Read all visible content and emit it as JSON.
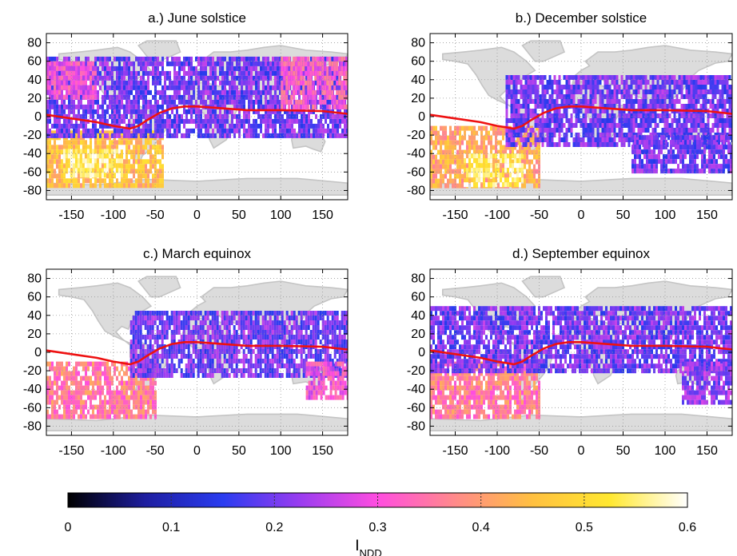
{
  "chart_data": [
    {
      "type": "heatmap",
      "title": "a.) June solstice",
      "xlim": [
        -180,
        180
      ],
      "ylim": [
        -90,
        90
      ],
      "xticks": [
        -150,
        -100,
        -50,
        0,
        50,
        100,
        150
      ],
      "yticks": [
        80,
        60,
        40,
        20,
        0,
        -20,
        -40,
        -60,
        -80
      ],
      "grid": true,
      "equator_line": [
        [
          -180,
          2
        ],
        [
          -150,
          -2
        ],
        [
          -120,
          -6
        ],
        [
          -100,
          -10
        ],
        [
          -80,
          -13
        ],
        [
          -70,
          -10
        ],
        [
          -60,
          -4
        ],
        [
          -45,
          4
        ],
        [
          -30,
          9
        ],
        [
          -15,
          11
        ],
        [
          0,
          11
        ],
        [
          30,
          9
        ],
        [
          60,
          7
        ],
        [
          100,
          7
        ],
        [
          150,
          6
        ],
        [
          180,
          3
        ]
      ],
      "regions": [
        {
          "lon": [
            -180,
            -40
          ],
          "lat": [
            -75,
            -15
          ],
          "value": 0.45
        },
        {
          "lon": [
            -160,
            -90
          ],
          "lat": [
            -65,
            -35
          ],
          "value": 0.55
        },
        {
          "lon": [
            -180,
            180
          ],
          "lat": [
            -20,
            65
          ],
          "value": 0.2
        },
        {
          "lon": [
            100,
            180
          ],
          "lat": [
            10,
            65
          ],
          "value": 0.32
        },
        {
          "lon": [
            -180,
            -120
          ],
          "lat": [
            20,
            60
          ],
          "value": 0.3
        }
      ]
    },
    {
      "type": "heatmap",
      "title": "b.) December solstice",
      "xlim": [
        -180,
        180
      ],
      "ylim": [
        -90,
        90
      ],
      "xticks": [
        -150,
        -100,
        -50,
        0,
        50,
        100,
        150
      ],
      "yticks": [
        80,
        60,
        40,
        20,
        0,
        -20,
        -40,
        -60,
        -80
      ],
      "grid": true,
      "equator_line": [
        [
          -180,
          2
        ],
        [
          -150,
          -2
        ],
        [
          -120,
          -6
        ],
        [
          -100,
          -10
        ],
        [
          -80,
          -13
        ],
        [
          -70,
          -10
        ],
        [
          -60,
          -4
        ],
        [
          -45,
          4
        ],
        [
          -30,
          9
        ],
        [
          -15,
          11
        ],
        [
          0,
          11
        ],
        [
          30,
          9
        ],
        [
          60,
          7
        ],
        [
          100,
          7
        ],
        [
          150,
          6
        ],
        [
          180,
          3
        ]
      ],
      "regions": [
        {
          "lon": [
            -180,
            -50
          ],
          "lat": [
            -75,
            -10
          ],
          "value": 0.42
        },
        {
          "lon": [
            -140,
            -70
          ],
          "lat": [
            -72,
            -40
          ],
          "value": 0.55
        },
        {
          "lon": [
            -90,
            180
          ],
          "lat": [
            -30,
            45
          ],
          "value": 0.2
        },
        {
          "lon": [
            60,
            180
          ],
          "lat": [
            -60,
            -20
          ],
          "value": 0.2
        }
      ]
    },
    {
      "type": "heatmap",
      "title": "c.) March equinox",
      "xlim": [
        -180,
        180
      ],
      "ylim": [
        -90,
        90
      ],
      "xticks": [
        -150,
        -100,
        -50,
        0,
        50,
        100,
        150
      ],
      "yticks": [
        80,
        60,
        40,
        20,
        0,
        -20,
        -40,
        -60,
        -80
      ],
      "grid": true,
      "equator_line": [
        [
          -180,
          2
        ],
        [
          -150,
          -2
        ],
        [
          -120,
          -6
        ],
        [
          -100,
          -10
        ],
        [
          -80,
          -13
        ],
        [
          -70,
          -10
        ],
        [
          -60,
          -4
        ],
        [
          -45,
          4
        ],
        [
          -30,
          9
        ],
        [
          -15,
          11
        ],
        [
          0,
          11
        ],
        [
          30,
          9
        ],
        [
          60,
          7
        ],
        [
          100,
          7
        ],
        [
          150,
          6
        ],
        [
          180,
          3
        ]
      ],
      "regions": [
        {
          "lon": [
            -180,
            -50
          ],
          "lat": [
            -72,
            -10
          ],
          "value": 0.36
        },
        {
          "lon": [
            -80,
            180
          ],
          "lat": [
            -25,
            45
          ],
          "value": 0.2
        },
        {
          "lon": [
            130,
            180
          ],
          "lat": [
            -50,
            -10
          ],
          "value": 0.3
        }
      ]
    },
    {
      "type": "heatmap",
      "title": "d.) September equinox",
      "xlim": [
        -180,
        180
      ],
      "ylim": [
        -90,
        90
      ],
      "xticks": [
        -150,
        -100,
        -50,
        0,
        50,
        100,
        150
      ],
      "yticks": [
        80,
        60,
        40,
        20,
        0,
        -20,
        -40,
        -60,
        -80
      ],
      "grid": true,
      "equator_line": [
        [
          -180,
          2
        ],
        [
          -150,
          -2
        ],
        [
          -120,
          -6
        ],
        [
          -100,
          -10
        ],
        [
          -80,
          -13
        ],
        [
          -70,
          -10
        ],
        [
          -60,
          -4
        ],
        [
          -45,
          4
        ],
        [
          -30,
          9
        ],
        [
          -15,
          11
        ],
        [
          0,
          11
        ],
        [
          30,
          9
        ],
        [
          60,
          7
        ],
        [
          100,
          7
        ],
        [
          150,
          6
        ],
        [
          180,
          3
        ]
      ],
      "regions": [
        {
          "lon": [
            -180,
            -50
          ],
          "lat": [
            -72,
            -10
          ],
          "value": 0.36
        },
        {
          "lon": [
            -180,
            180
          ],
          "lat": [
            -20,
            50
          ],
          "value": 0.2
        },
        {
          "lon": [
            120,
            180
          ],
          "lat": [
            -55,
            -10
          ],
          "value": 0.22
        }
      ]
    }
  ],
  "colorbar": {
    "label": "I",
    "label_subscript": "NDD",
    "range": [
      0,
      0.6
    ],
    "ticks": [
      "0",
      "0.1",
      "0.2",
      "0.3",
      "0.4",
      "0.5",
      "0.6"
    ],
    "colors": [
      "#000000",
      "#1e1ea0",
      "#2a3cf0",
      "#9a3cf0",
      "#ff4de0",
      "#ff8a8a",
      "#ffc040",
      "#ffe830",
      "#ffffff"
    ]
  },
  "colors": {
    "equator_line": "#ee1111",
    "continents": "#c4c4c4",
    "grid": "#999999"
  }
}
